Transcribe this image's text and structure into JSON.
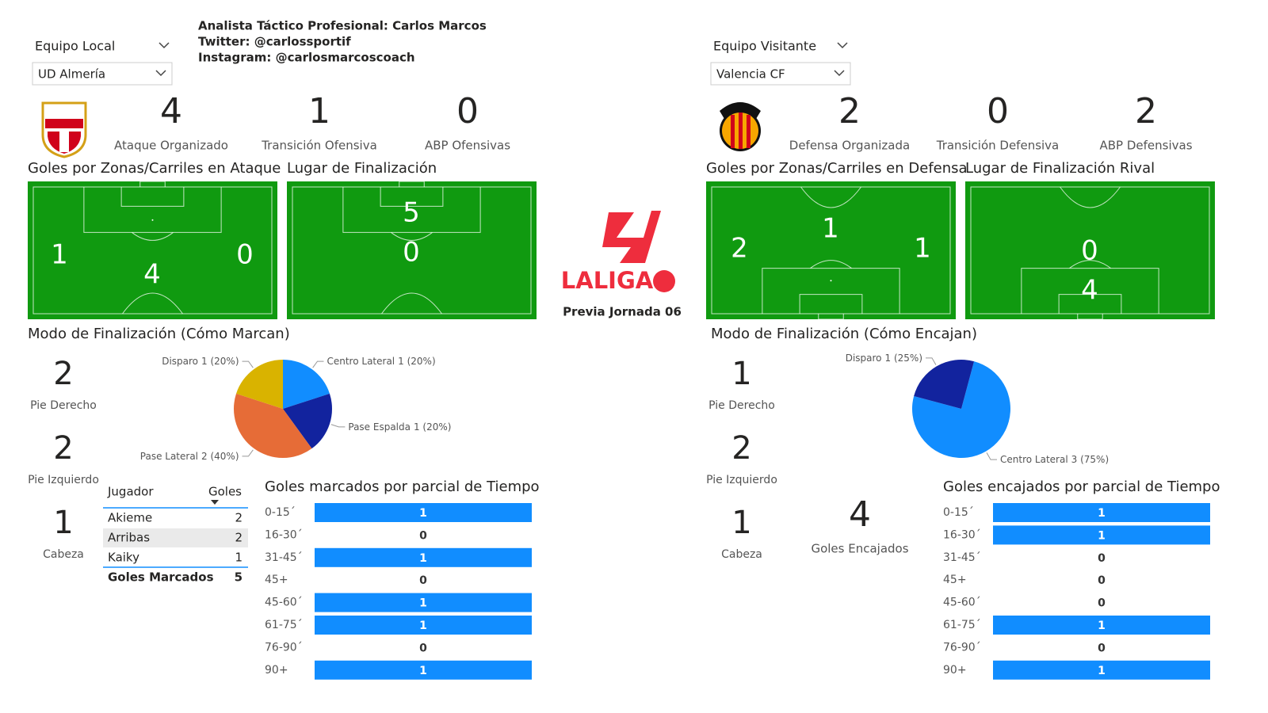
{
  "header": {
    "analyst": "Analista Táctico Profesional: Carlos Marcos",
    "twitter": "Twitter: @carlossportif",
    "instagram": "Instagram: @carlosmarcoscoach",
    "league": "LALIGA",
    "subtitle": "Previa Jornada 06"
  },
  "home": {
    "selector_label": "Equipo Local",
    "team": "UD Almería",
    "kpis": [
      {
        "value": 4,
        "label": "Ataque Organizado"
      },
      {
        "value": 1,
        "label": "Transición Ofensiva"
      },
      {
        "value": 0,
        "label": "ABP Ofensivas"
      }
    ],
    "zones_title": "Goles por Zonas/Carriles en Ataque",
    "zones": {
      "left": 1,
      "center": 4,
      "right": 0
    },
    "finish_title": "Lugar de Finalización",
    "finish": {
      "inside_box": 5,
      "outside_box": 0
    },
    "mode_title": "Modo de Finalización (Cómo Marcan)",
    "body_parts": [
      {
        "value": 2,
        "label": "Pie Derecho"
      },
      {
        "value": 2,
        "label": "Pie Izquierdo"
      },
      {
        "value": 1,
        "label": "Cabeza"
      }
    ],
    "table": {
      "columns": [
        "Jugador",
        "Goles"
      ],
      "rows": [
        [
          "Akieme",
          2
        ],
        [
          "Arribas",
          2
        ],
        [
          "Kaiky",
          1
        ]
      ],
      "total": [
        "Goles Marcados",
        5
      ]
    }
  },
  "away": {
    "selector_label": "Equipo Visitante",
    "team": "Valencia CF",
    "kpis": [
      {
        "value": 2,
        "label": "Defensa Organizada"
      },
      {
        "value": 0,
        "label": "Transición Defensiva"
      },
      {
        "value": 2,
        "label": "ABP Defensivas"
      }
    ],
    "zones_title": "Goles por Zonas/Carriles en Defensa",
    "zones": {
      "left": 2,
      "center": 1,
      "right": 1
    },
    "finish_title": "Lugar de Finalización Rival",
    "finish": {
      "inside_box": 4,
      "outside_box": 0
    },
    "mode_title": "Modo de Finalización (Cómo Encajan)",
    "body_parts": [
      {
        "value": 1,
        "label": "Pie Derecho"
      },
      {
        "value": 2,
        "label": "Pie Izquierdo"
      },
      {
        "value": 1,
        "label": "Cabeza"
      }
    ],
    "conceded": {
      "value": 4,
      "label": "Goles Encajados"
    }
  },
  "chart_data": [
    {
      "type": "pie",
      "categories": [
        "Centro Lateral",
        "Pase Espalda",
        "Pase Lateral",
        "Disparo"
      ],
      "values": [
        1,
        1,
        2,
        1
      ],
      "value_labels": [
        "1 (20%)",
        "1 (20%)",
        "2 (40%)",
        "1 (20%)"
      ],
      "colors": [
        "#118dff",
        "#12239e",
        "#e66c37",
        "#d9b300"
      ]
    },
    {
      "type": "bar",
      "title": "Goles marcados por parcial de Tiempo",
      "categories": [
        "0-15´",
        "16-30´",
        "31-45´",
        "45+",
        "45-60´",
        "61-75´",
        "76-90´",
        "90+"
      ],
      "values": [
        1,
        0,
        1,
        0,
        1,
        1,
        0,
        1
      ],
      "xlim": [
        0,
        1
      ],
      "color": "#118dff"
    },
    {
      "type": "pie",
      "categories": [
        "Centro Lateral",
        "Disparo"
      ],
      "values": [
        3,
        1
      ],
      "value_labels": [
        "3 (75%)",
        "1 (25%)"
      ],
      "colors": [
        "#118dff",
        "#12239e"
      ]
    },
    {
      "type": "bar",
      "title": "Goles encajados por parcial de Tiempo",
      "categories": [
        "0-15´",
        "16-30´",
        "31-45´",
        "45+",
        "45-60´",
        "61-75´",
        "76-90´",
        "90+"
      ],
      "values": [
        1,
        1,
        0,
        0,
        0,
        1,
        0,
        1
      ],
      "xlim": [
        0,
        1
      ],
      "color": "#118dff"
    }
  ]
}
